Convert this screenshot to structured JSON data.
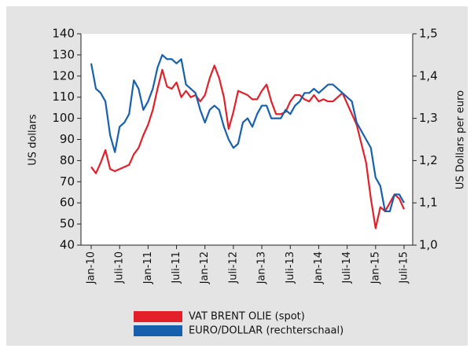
{
  "chart_data": {
    "type": "line",
    "y_label": "US dollars",
    "y2_label": "US Dollars per euro",
    "categories": [
      "Jan-10",
      null,
      null,
      null,
      null,
      null,
      "Juli-10",
      null,
      null,
      null,
      null,
      null,
      "Jan-11",
      null,
      null,
      null,
      null,
      null,
      "Juli-11",
      null,
      null,
      null,
      null,
      null,
      "Jan-12",
      null,
      null,
      null,
      null,
      null,
      "Juli-12",
      null,
      null,
      null,
      null,
      null,
      "Jan-13",
      null,
      null,
      null,
      null,
      null,
      "Juli-13",
      null,
      null,
      null,
      null,
      null,
      "Jan-14",
      null,
      null,
      null,
      null,
      null,
      "Juli-14",
      null,
      null,
      null,
      null,
      null,
      "Jan-15",
      null,
      null,
      null,
      null,
      null,
      "Juli-15"
    ],
    "series": [
      {
        "name": "VAT BRENT OLIE (spot)",
        "color": "#e3202a",
        "axis": "y",
        "values": [
          77,
          74,
          79,
          85,
          76,
          75,
          76,
          77,
          78,
          83,
          86,
          92,
          97,
          104,
          114,
          123,
          115,
          114,
          117,
          110,
          113,
          110,
          111,
          108,
          111,
          119,
          125,
          119,
          110,
          95,
          103,
          113,
          112,
          111,
          109,
          109,
          113,
          116,
          108,
          102,
          102,
          103,
          108,
          111,
          111,
          109,
          108,
          111,
          108,
          109,
          108,
          108,
          110,
          112,
          107,
          102,
          97,
          88,
          79,
          62,
          48,
          58,
          56,
          60,
          64,
          62,
          57
        ]
      },
      {
        "name": "EURO/DOLLAR (rechterschaal)",
        "color": "#1660ad",
        "axis": "y2",
        "values": [
          1.43,
          1.37,
          1.36,
          1.34,
          1.26,
          1.22,
          1.28,
          1.29,
          1.31,
          1.39,
          1.37,
          1.32,
          1.34,
          1.37,
          1.42,
          1.45,
          1.44,
          1.44,
          1.43,
          1.44,
          1.38,
          1.37,
          1.36,
          1.32,
          1.29,
          1.32,
          1.33,
          1.32,
          1.28,
          1.25,
          1.23,
          1.24,
          1.29,
          1.3,
          1.28,
          1.31,
          1.33,
          1.33,
          1.3,
          1.3,
          1.3,
          1.32,
          1.31,
          1.33,
          1.34,
          1.36,
          1.36,
          1.37,
          1.36,
          1.37,
          1.38,
          1.38,
          1.37,
          1.36,
          1.35,
          1.34,
          1.29,
          1.27,
          1.25,
          1.23,
          1.16,
          1.14,
          1.08,
          1.08,
          1.12,
          1.12,
          1.1
        ]
      }
    ],
    "ylim": [
      40,
      140
    ],
    "yticks": [
      40,
      50,
      60,
      70,
      80,
      90,
      100,
      110,
      120,
      130,
      140
    ],
    "y2lim": [
      1.0,
      1.5
    ],
    "y2ticks": [
      {
        "value": 1.0,
        "label": "1,0"
      },
      {
        "value": 1.1,
        "label": "1,1"
      },
      {
        "value": 1.2,
        "label": "1,2"
      },
      {
        "value": 1.3,
        "label": "1,3"
      },
      {
        "value": 1.4,
        "label": "1,4"
      },
      {
        "value": 1.5,
        "label": "1,5"
      }
    ],
    "legend": "bottom"
  }
}
